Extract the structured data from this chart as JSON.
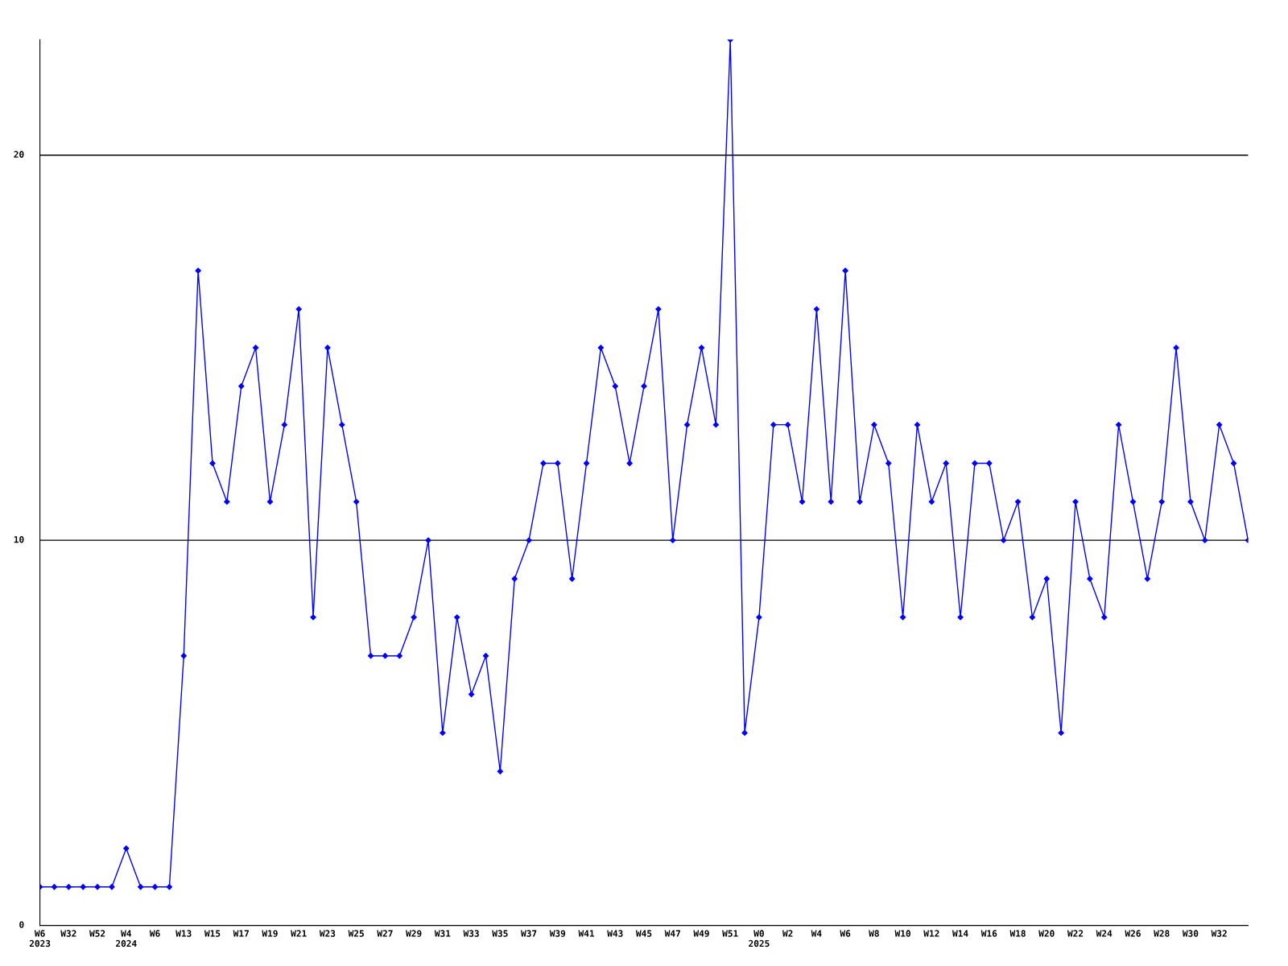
{
  "chart_data": {
    "type": "line",
    "categories": [
      "W6\n2023",
      null,
      "W32",
      null,
      "W52",
      null,
      "W4\n2024",
      null,
      "W6",
      null,
      "W13",
      null,
      "W15",
      null,
      "W17",
      null,
      "W19",
      null,
      "W21",
      null,
      "W23",
      null,
      "W25",
      null,
      "W27",
      null,
      "W29",
      null,
      "W31",
      null,
      "W33",
      null,
      "W35",
      null,
      "W37",
      null,
      "W39",
      null,
      "W41",
      null,
      "W43",
      null,
      "W45",
      null,
      "W47",
      null,
      "W49",
      null,
      "W51",
      null,
      "W0\n2025",
      null,
      "W2",
      null,
      "W4",
      null,
      "W6",
      null,
      "W8",
      null,
      "W10",
      null,
      "W12",
      null,
      "W14",
      null,
      "W16",
      null,
      "W18",
      null,
      "W20",
      null,
      "W22",
      null,
      "W24",
      null,
      "W26",
      null,
      "W28",
      null,
      "W30",
      null,
      "W32",
      null,
      null
    ],
    "series": [
      {
        "color": "#0000ff",
        "values": [
          1,
          1,
          1,
          1,
          1,
          1,
          2,
          1,
          1,
          1,
          7,
          17,
          12,
          11,
          14,
          15,
          11,
          13,
          16,
          8,
          15,
          13,
          11,
          7,
          7,
          7,
          8,
          10,
          5,
          8,
          6,
          7,
          4,
          9,
          10,
          12,
          12,
          9,
          12,
          15,
          14,
          12,
          14,
          16,
          10,
          13,
          15,
          13,
          23,
          5,
          8,
          13,
          13,
          11,
          16,
          11,
          17,
          11,
          13,
          12,
          8,
          13,
          11,
          12,
          8,
          12,
          12,
          10,
          11,
          8,
          9,
          5,
          11,
          9,
          8,
          13,
          11,
          9,
          11,
          15,
          11,
          10,
          13,
          12,
          10
        ]
      }
    ],
    "ylim": [
      0,
      23
    ],
    "yticks": [
      0,
      10,
      20
    ],
    "grid": "y",
    "marker": "diamond",
    "line_style": "solid"
  }
}
